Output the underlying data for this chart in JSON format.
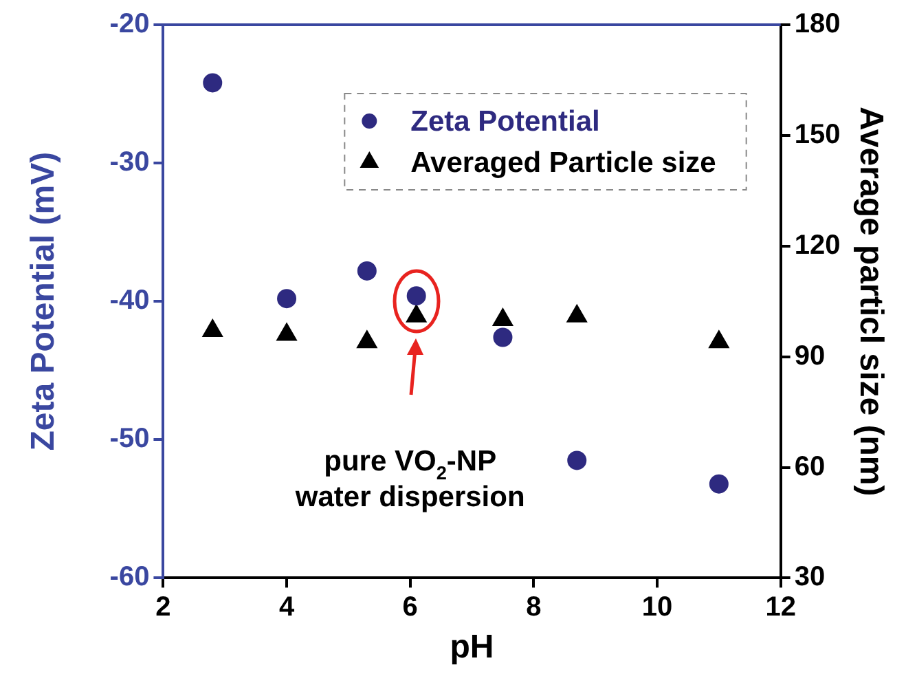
{
  "chart_data": {
    "type": "scatter",
    "xlabel": "pH",
    "ylabel": "Zeta Potential (mV)",
    "y2label": "Average particl size (nm)",
    "x": [
      2.8,
      4.0,
      5.3,
      6.1,
      7.5,
      8.7,
      11.0
    ],
    "series": [
      {
        "name": "Zeta Potential",
        "color": "#2e2a80",
        "marker": "circle",
        "values": [
          -24.2,
          -39.8,
          -37.8,
          -39.6,
          -42.6,
          -51.5,
          -53.2
        ]
      },
      {
        "name": "Averaged Particle size",
        "color": "#000000",
        "marker": "triangle",
        "axis": "y2",
        "values": [
          97,
          96,
          94,
          101,
          100,
          101,
          94
        ]
      }
    ],
    "xlim": [
      2,
      12
    ],
    "xticks": [
      2,
      4,
      6,
      8,
      10,
      12
    ],
    "ylim": [
      -60,
      -20
    ],
    "yticks": [
      -60,
      -50,
      -40,
      -30,
      -20
    ],
    "y2lim": [
      30,
      180
    ],
    "y2ticks": [
      30,
      60,
      90,
      120,
      150,
      180
    ],
    "annotations": [
      "pure VO$_{2}$-NP water dispersion"
    ],
    "grid": false,
    "legend": "top right"
  }
}
